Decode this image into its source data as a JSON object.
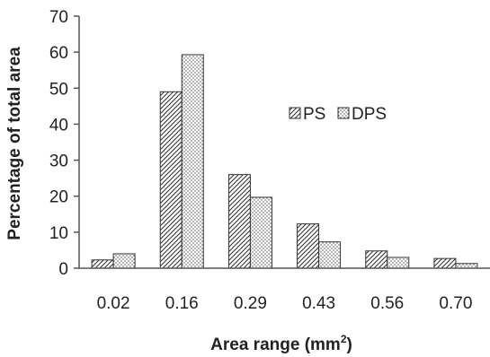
{
  "chart_data": {
    "type": "bar",
    "categories": [
      "0.02",
      "0.16",
      "0.29",
      "0.43",
      "0.56",
      "0.70"
    ],
    "series": [
      {
        "name": "PS",
        "values": [
          2.3,
          49,
          26,
          12.3,
          4.8,
          2.7
        ],
        "pattern": "diagonal-hatch"
      },
      {
        "name": "DPS",
        "values": [
          4,
          59.3,
          19.7,
          7.3,
          3,
          1.3
        ],
        "pattern": "dots"
      }
    ],
    "title": "",
    "xlabel": "Area range (mm",
    "xlabel_sup": "2",
    "xlabel_suffix": ")",
    "ylabel": "Percentage of total area",
    "ylim": [
      0,
      70
    ],
    "yticks": [
      "0",
      "10",
      "20",
      "30",
      "40",
      "50",
      "60",
      "70"
    ],
    "grid": false,
    "legend_position": "upper-right inside plot"
  }
}
